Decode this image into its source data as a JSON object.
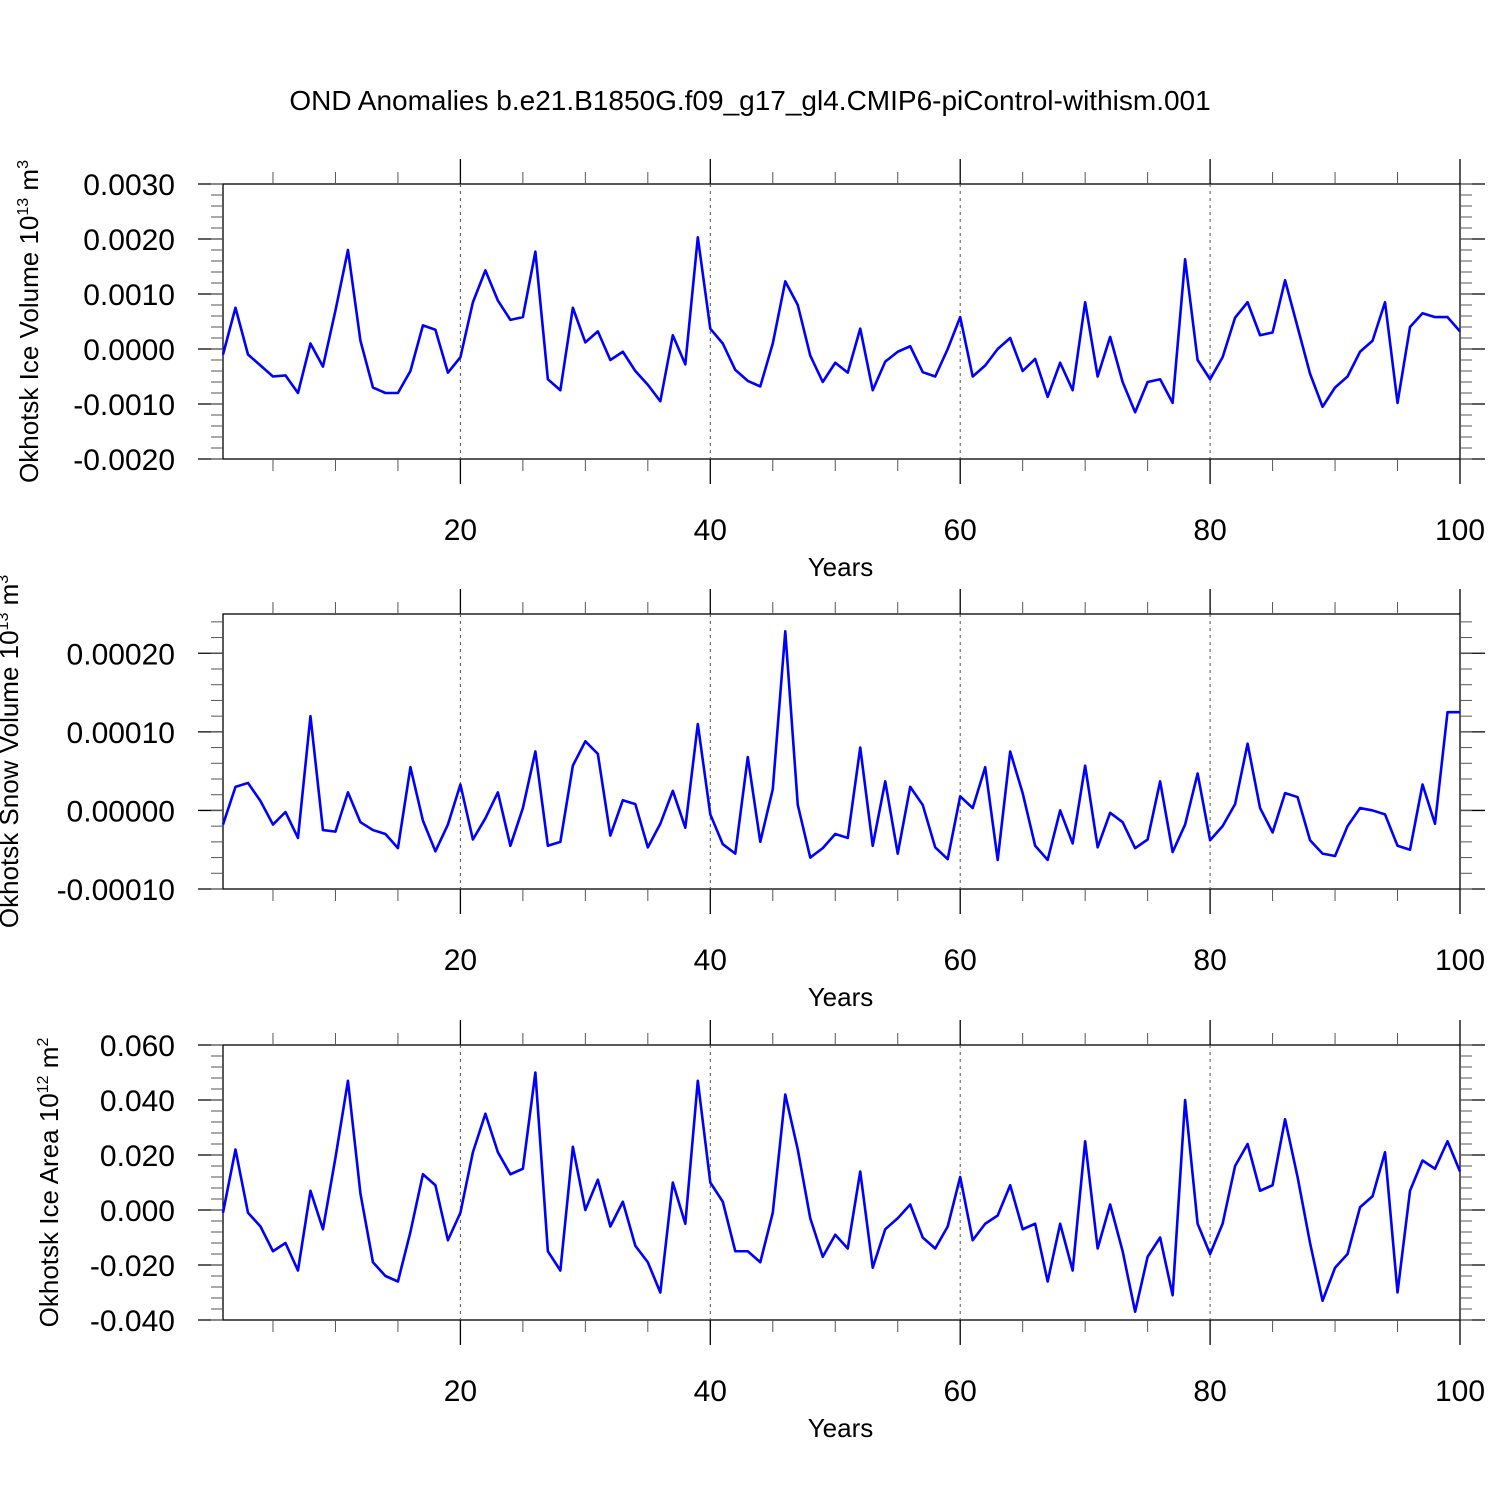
{
  "title": "OND Anomalies b.e21.B1850G.f09_g17_gl4.CMIP6-piControl-withism.001",
  "line_color": "#0000ff",
  "chart_data": [
    {
      "type": "line",
      "ylabel": "Okhotsk Ice Volume 10",
      "ylabel_sup": "13",
      "ylabel_unit": "m",
      "ylabel_unit_sup": "3",
      "xlabel": "Years",
      "xlim": [
        1,
        100
      ],
      "ylim": [
        -0.002,
        0.003
      ],
      "yticks": [
        -0.002,
        -0.001,
        0.0,
        0.001,
        0.002,
        0.003
      ],
      "ytick_labels": [
        "-0.0020",
        "-0.0010",
        "0.0000",
        "0.0010",
        "0.0020",
        "0.0030"
      ],
      "xticks": [
        20,
        40,
        60,
        80,
        100
      ],
      "xtick_labels": [
        "20",
        "40",
        "60",
        "80",
        "100"
      ],
      "grid_x": [
        20,
        40,
        60,
        80
      ],
      "x_start": 1,
      "values": [
        -0.0001,
        0.00075,
        -0.0001,
        -0.0003,
        -0.0005,
        -0.00048,
        -0.0008,
        0.0001,
        -0.00032,
        0.0007,
        0.0018,
        0.00015,
        -0.0007,
        -0.0008,
        -0.0008,
        -0.0004,
        0.00043,
        0.00035,
        -0.00043,
        -0.00015,
        0.00085,
        0.00143,
        0.00088,
        0.00053,
        0.00058,
        0.00177,
        -0.00055,
        -0.00075,
        0.00075,
        0.00012,
        0.00032,
        -0.0002,
        -5e-05,
        -0.0004,
        -0.00065,
        -0.00095,
        0.00025,
        -0.00028,
        0.00203,
        0.00037,
        0.0001,
        -0.00038,
        -0.00058,
        -0.00068,
        0.0001,
        0.00123,
        0.0008,
        -0.00012,
        -0.0006,
        -0.00025,
        -0.00043,
        0.00037,
        -0.00075,
        -0.00023,
        -5e-05,
        5e-05,
        -0.00042,
        -0.0005,
        0.0,
        0.00058,
        -0.0005,
        -0.0003,
        0.0,
        0.0002,
        -0.0004,
        -0.00018,
        -0.00087,
        -0.00025,
        -0.00075,
        0.00085,
        -0.0005,
        0.00022,
        -0.0006,
        -0.00115,
        -0.0006,
        -0.00055,
        -0.00098,
        0.00163,
        -0.0002,
        -0.00055,
        -0.00015,
        0.00057,
        0.00085,
        0.00025,
        0.0003,
        0.00125,
        0.0004,
        -0.00045,
        -0.00105,
        -0.0007,
        -0.0005,
        -5e-05,
        0.00015,
        0.00085,
        -0.00098,
        0.0004,
        0.00065,
        0.00058,
        0.00058,
        0.00032
      ]
    },
    {
      "type": "line",
      "ylabel": "Okhotsk Snow Volume 10",
      "ylabel_sup": "13",
      "ylabel_unit": "m",
      "ylabel_unit_sup": "3",
      "xlabel": "Years",
      "xlim": [
        1,
        100
      ],
      "ylim": [
        -0.0001,
        0.00025
      ],
      "yticks": [
        -0.0001,
        0.0,
        0.0001,
        0.0002
      ],
      "ytick_labels": [
        "-0.00010",
        "0.00000",
        "0.00010",
        "0.00020"
      ],
      "xticks": [
        20,
        40,
        60,
        80,
        100
      ],
      "xtick_labels": [
        "20",
        "40",
        "60",
        "80",
        "100"
      ],
      "grid_x": [
        20,
        40,
        60,
        80
      ],
      "x_start": 1,
      "values": [
        -1.8e-05,
        3e-05,
        3.5e-05,
        1.2e-05,
        -1.8e-05,
        -2e-06,
        -3.5e-05,
        0.00012,
        -2.5e-05,
        -2.7e-05,
        2.3e-05,
        -1.5e-05,
        -2.5e-05,
        -3e-05,
        -4.8e-05,
        5.5e-05,
        -1.3e-05,
        -5.2e-05,
        -1.8e-05,
        3.3e-05,
        -3.7e-05,
        -1e-05,
        2.3e-05,
        -4.5e-05,
        3e-06,
        7.5e-05,
        -4.5e-05,
        -4e-05,
        5.7e-05,
        8.8e-05,
        7.2e-05,
        -3.2e-05,
        1.3e-05,
        8e-06,
        -4.7e-05,
        -1.7e-05,
        2.5e-05,
        -2.2e-05,
        0.00011,
        -5e-06,
        -4.3e-05,
        -5.5e-05,
        6.8e-05,
        -4e-05,
        2.7e-05,
        0.000228,
        7e-06,
        -6e-05,
        -4.8e-05,
        -3e-05,
        -3.5e-05,
        8e-05,
        -4.5e-05,
        3.7e-05,
        -5.5e-05,
        3e-05,
        7e-06,
        -4.7e-05,
        -6.2e-05,
        1.8e-05,
        3e-06,
        5.5e-05,
        -6.3e-05,
        7.5e-05,
        2.2e-05,
        -4.5e-05,
        -6.3e-05,
        0.0,
        -4.2e-05,
        5.7e-05,
        -4.7e-05,
        -3e-06,
        -1.5e-05,
        -4.8e-05,
        -3.7e-05,
        3.7e-05,
        -5.3e-05,
        -1.8e-05,
        4.7e-05,
        -3.8e-05,
        -2e-05,
        8e-06,
        8.5e-05,
        3e-06,
        -2.8e-05,
        2.2e-05,
        1.7e-05,
        -3.8e-05,
        -5.5e-05,
        -5.8e-05,
        -2e-05,
        3e-06,
        0.0,
        -5e-06,
        -4.5e-05,
        -5e-05,
        3.3e-05,
        -1.7e-05,
        0.000125,
        0.000125
      ]
    },
    {
      "type": "line",
      "ylabel": "Okhotsk Ice Area 10",
      "ylabel_sup": "12",
      "ylabel_unit": "m",
      "ylabel_unit_sup": "2",
      "xlabel": "Years",
      "xlim": [
        1,
        100
      ],
      "ylim": [
        -0.04,
        0.06
      ],
      "yticks": [
        -0.04,
        -0.02,
        0.0,
        0.02,
        0.04,
        0.06
      ],
      "ytick_labels": [
        "-0.040",
        "-0.020",
        "0.000",
        "0.020",
        "0.040",
        "0.060"
      ],
      "xticks": [
        20,
        40,
        60,
        80,
        100
      ],
      "xtick_labels": [
        "20",
        "40",
        "60",
        "80",
        "100"
      ],
      "grid_x": [
        20,
        40,
        60,
        80
      ],
      "x_start": 1,
      "values": [
        -0.001,
        0.022,
        -0.001,
        -0.006,
        -0.015,
        -0.012,
        -0.022,
        0.007,
        -0.007,
        0.019,
        0.047,
        0.006,
        -0.019,
        -0.024,
        -0.026,
        -0.008,
        0.013,
        0.009,
        -0.011,
        -0.001,
        0.021,
        0.035,
        0.021,
        0.013,
        0.015,
        0.05,
        -0.015,
        -0.022,
        0.023,
        0.0,
        0.011,
        -0.006,
        0.003,
        -0.013,
        -0.019,
        -0.03,
        0.01,
        -0.005,
        0.047,
        0.01,
        0.003,
        -0.015,
        -0.015,
        -0.019,
        -0.001,
        0.042,
        0.022,
        -0.003,
        -0.017,
        -0.009,
        -0.014,
        0.014,
        -0.021,
        -0.007,
        -0.003,
        0.002,
        -0.01,
        -0.014,
        -0.006,
        0.012,
        -0.011,
        -0.005,
        -0.002,
        0.009,
        -0.007,
        -0.005,
        -0.026,
        -0.005,
        -0.022,
        0.025,
        -0.014,
        0.002,
        -0.015,
        -0.037,
        -0.017,
        -0.01,
        -0.031,
        0.04,
        -0.005,
        -0.016,
        -0.005,
        0.016,
        0.024,
        0.007,
        0.009,
        0.033,
        0.012,
        -0.012,
        -0.033,
        -0.021,
        -0.016,
        0.001,
        0.005,
        0.021,
        -0.03,
        0.007,
        0.018,
        0.015,
        0.025,
        0.014
      ]
    }
  ]
}
